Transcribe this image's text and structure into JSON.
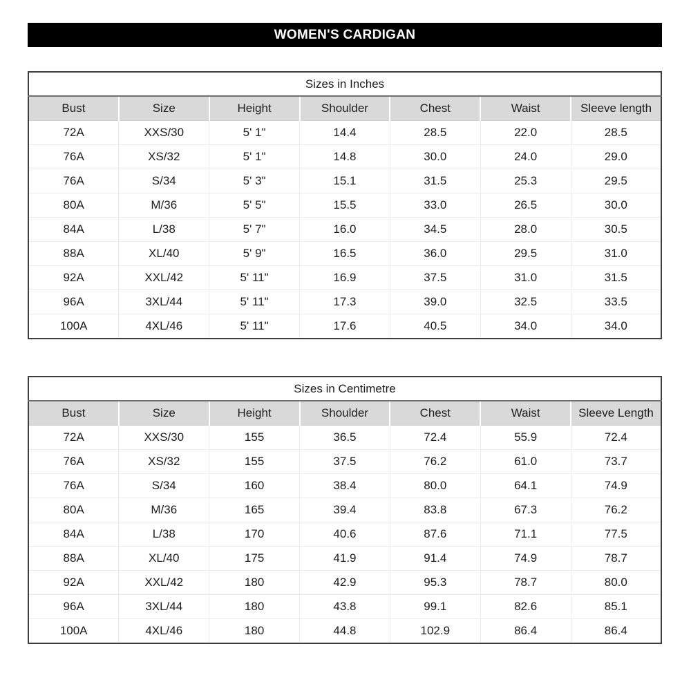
{
  "title": {
    "text": "WOMEN'S CARDIGAN",
    "bg_color": "#000000",
    "text_color": "#ffffff"
  },
  "colors": {
    "header_row_bg": "#d9d9d9",
    "table_border": "#3d3d3d",
    "row_divider": "#ebebeb"
  },
  "tables": [
    {
      "id": "sizes-in-inches",
      "caption": "Sizes in Inches",
      "columns": [
        "Bust",
        "Size",
        "Height",
        "Shoulder",
        "Chest",
        "Waist",
        "Sleeve length"
      ],
      "rows": [
        [
          "72A",
          "XXS/30",
          "5' 1\"",
          "14.4",
          "28.5",
          "22.0",
          "28.5"
        ],
        [
          "76A",
          "XS/32",
          "5' 1\"",
          "14.8",
          "30.0",
          "24.0",
          "29.0"
        ],
        [
          "76A",
          "S/34",
          "5' 3\"",
          "15.1",
          "31.5",
          "25.3",
          "29.5"
        ],
        [
          "80A",
          "M/36",
          "5' 5\"",
          "15.5",
          "33.0",
          "26.5",
          "30.0"
        ],
        [
          "84A",
          "L/38",
          "5' 7\"",
          "16.0",
          "34.5",
          "28.0",
          "30.5"
        ],
        [
          "88A",
          "XL/40",
          "5' 9\"",
          "16.5",
          "36.0",
          "29.5",
          "31.0"
        ],
        [
          "92A",
          "XXL/42",
          "5' 11\"",
          "16.9",
          "37.5",
          "31.0",
          "31.5"
        ],
        [
          "96A",
          "3XL/44",
          "5' 11\"",
          "17.3",
          "39.0",
          "32.5",
          "33.5"
        ],
        [
          "100A",
          "4XL/46",
          "5' 11\"",
          "17.6",
          "40.5",
          "34.0",
          "34.0"
        ]
      ]
    },
    {
      "id": "sizes-in-centimetre",
      "caption": "Sizes in Centimetre",
      "columns": [
        "Bust",
        "Size",
        "Height",
        "Shoulder",
        "Chest",
        "Waist",
        "Sleeve Length"
      ],
      "rows": [
        [
          "72A",
          "XXS/30",
          "155",
          "36.5",
          "72.4",
          "55.9",
          "72.4"
        ],
        [
          "76A",
          "XS/32",
          "155",
          "37.5",
          "76.2",
          "61.0",
          "73.7"
        ],
        [
          "76A",
          "S/34",
          "160",
          "38.4",
          "80.0",
          "64.1",
          "74.9"
        ],
        [
          "80A",
          "M/36",
          "165",
          "39.4",
          "83.8",
          "67.3",
          "76.2"
        ],
        [
          "84A",
          "L/38",
          "170",
          "40.6",
          "87.6",
          "71.1",
          "77.5"
        ],
        [
          "88A",
          "XL/40",
          "175",
          "41.9",
          "91.4",
          "74.9",
          "78.7"
        ],
        [
          "92A",
          "XXL/42",
          "180",
          "42.9",
          "95.3",
          "78.7",
          "80.0"
        ],
        [
          "96A",
          "3XL/44",
          "180",
          "43.8",
          "99.1",
          "82.6",
          "85.1"
        ],
        [
          "100A",
          "4XL/46",
          "180",
          "44.8",
          "102.9",
          "86.4",
          "86.4"
        ]
      ]
    }
  ]
}
